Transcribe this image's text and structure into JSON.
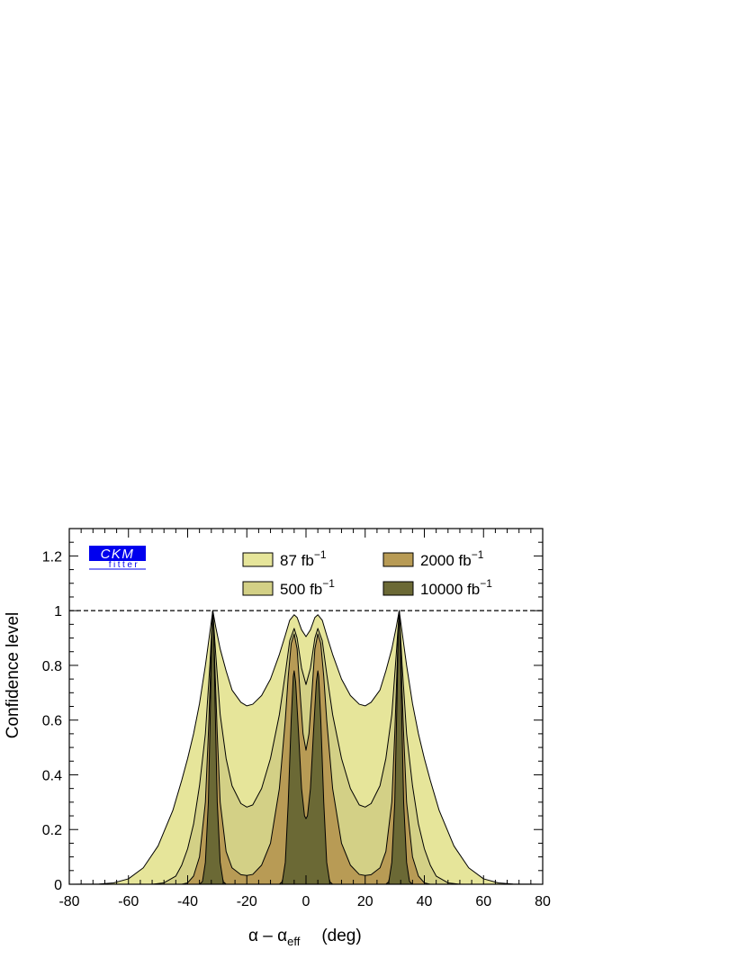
{
  "chart_data": {
    "type": "area",
    "xlabel": "α – α",
    "xlabel_sub": "eff",
    "xlabel_unit": "(deg)",
    "ylabel": "Confidence level",
    "xlim": [
      -80,
      80
    ],
    "ylim": [
      0,
      1.3
    ],
    "xticks": [
      -80,
      -60,
      -40,
      -20,
      0,
      20,
      40,
      60,
      80
    ],
    "yticks": [
      0,
      0.2,
      0.4,
      0.6,
      0.8,
      1,
      1.2
    ],
    "ytick_labels": [
      "0",
      "0.2",
      "0.4",
      "0.6",
      "0.8",
      "1",
      "1.2"
    ],
    "reference_line": {
      "y": 1,
      "style": "dashed"
    },
    "legend_placement": "top",
    "logo": {
      "main": "CKM",
      "sub": "fitter",
      "color": "#0000ee"
    },
    "series": [
      {
        "name": "87 fb",
        "sup": "−1",
        "color": "#e6e59a",
        "points": [
          [
            -80,
            0
          ],
          [
            -70,
            0.001
          ],
          [
            -65,
            0.005
          ],
          [
            -60,
            0.02
          ],
          [
            -55,
            0.06
          ],
          [
            -50,
            0.14
          ],
          [
            -45,
            0.27
          ],
          [
            -42,
            0.38
          ],
          [
            -40,
            0.46
          ],
          [
            -38,
            0.55
          ],
          [
            -36,
            0.66
          ],
          [
            -34,
            0.8
          ],
          [
            -32.5,
            0.92
          ],
          [
            -31.5,
            1.0
          ],
          [
            -30.5,
            0.94
          ],
          [
            -29,
            0.86
          ],
          [
            -27,
            0.78
          ],
          [
            -25,
            0.71
          ],
          [
            -22,
            0.665
          ],
          [
            -20,
            0.652
          ],
          [
            -18,
            0.658
          ],
          [
            -15,
            0.69
          ],
          [
            -12,
            0.75
          ],
          [
            -9,
            0.84
          ],
          [
            -7,
            0.91
          ],
          [
            -5.5,
            0.965
          ],
          [
            -4,
            0.985
          ],
          [
            -3,
            0.975
          ],
          [
            -1.5,
            0.93
          ],
          [
            0,
            0.905
          ],
          [
            1.5,
            0.93
          ],
          [
            3,
            0.975
          ],
          [
            4,
            0.985
          ],
          [
            5.5,
            0.965
          ],
          [
            7,
            0.91
          ],
          [
            9,
            0.84
          ],
          [
            12,
            0.75
          ],
          [
            15,
            0.69
          ],
          [
            18,
            0.658
          ],
          [
            20,
            0.652
          ],
          [
            22,
            0.665
          ],
          [
            25,
            0.71
          ],
          [
            27,
            0.78
          ],
          [
            29,
            0.86
          ],
          [
            30.5,
            0.94
          ],
          [
            31.5,
            1.0
          ],
          [
            32.5,
            0.92
          ],
          [
            34,
            0.8
          ],
          [
            36,
            0.66
          ],
          [
            38,
            0.55
          ],
          [
            40,
            0.46
          ],
          [
            42,
            0.38
          ],
          [
            45,
            0.27
          ],
          [
            50,
            0.14
          ],
          [
            55,
            0.06
          ],
          [
            60,
            0.02
          ],
          [
            65,
            0.005
          ],
          [
            70,
            0.001
          ],
          [
            80,
            0
          ]
        ]
      },
      {
        "name": "500 fb",
        "sup": "−1",
        "color": "#d3d086",
        "points": [
          [
            -80,
            0
          ],
          [
            -52,
            0
          ],
          [
            -48,
            0.005
          ],
          [
            -44,
            0.03
          ],
          [
            -42,
            0.07
          ],
          [
            -40,
            0.13
          ],
          [
            -38,
            0.22
          ],
          [
            -36,
            0.36
          ],
          [
            -34,
            0.55
          ],
          [
            -32.5,
            0.8
          ],
          [
            -31.5,
            1.0
          ],
          [
            -30.5,
            0.84
          ],
          [
            -29,
            0.62
          ],
          [
            -27,
            0.46
          ],
          [
            -25,
            0.36
          ],
          [
            -22,
            0.295
          ],
          [
            -20,
            0.282
          ],
          [
            -18,
            0.29
          ],
          [
            -15,
            0.35
          ],
          [
            -12,
            0.46
          ],
          [
            -9,
            0.62
          ],
          [
            -7,
            0.77
          ],
          [
            -5.5,
            0.89
          ],
          [
            -4,
            0.935
          ],
          [
            -3,
            0.9
          ],
          [
            -1.5,
            0.79
          ],
          [
            0,
            0.73
          ],
          [
            1.5,
            0.79
          ],
          [
            3,
            0.9
          ],
          [
            4,
            0.935
          ],
          [
            5.5,
            0.89
          ],
          [
            7,
            0.77
          ],
          [
            9,
            0.62
          ],
          [
            12,
            0.46
          ],
          [
            15,
            0.35
          ],
          [
            18,
            0.29
          ],
          [
            20,
            0.282
          ],
          [
            22,
            0.295
          ],
          [
            25,
            0.36
          ],
          [
            27,
            0.46
          ],
          [
            29,
            0.62
          ],
          [
            30.5,
            0.84
          ],
          [
            31.5,
            1.0
          ],
          [
            32.5,
            0.8
          ],
          [
            34,
            0.55
          ],
          [
            36,
            0.36
          ],
          [
            38,
            0.22
          ],
          [
            40,
            0.13
          ],
          [
            42,
            0.07
          ],
          [
            44,
            0.03
          ],
          [
            48,
            0.005
          ],
          [
            52,
            0
          ],
          [
            80,
            0
          ]
        ]
      },
      {
        "name": "2000 fb",
        "sup": "−1",
        "color": "#b89b55",
        "points": [
          [
            -80,
            0
          ],
          [
            -42,
            0
          ],
          [
            -40,
            0.005
          ],
          [
            -38,
            0.03
          ],
          [
            -36,
            0.1
          ],
          [
            -34,
            0.3
          ],
          [
            -33,
            0.55
          ],
          [
            -32,
            0.85
          ],
          [
            -31.5,
            1.0
          ],
          [
            -31,
            0.86
          ],
          [
            -30,
            0.55
          ],
          [
            -29,
            0.3
          ],
          [
            -27,
            0.12
          ],
          [
            -25,
            0.06
          ],
          [
            -22,
            0.035
          ],
          [
            -20,
            0.032
          ],
          [
            -18,
            0.036
          ],
          [
            -15,
            0.07
          ],
          [
            -12,
            0.15
          ],
          [
            -9,
            0.35
          ],
          [
            -7,
            0.6
          ],
          [
            -6,
            0.76
          ],
          [
            -5,
            0.88
          ],
          [
            -4,
            0.915
          ],
          [
            -3,
            0.86
          ],
          [
            -2,
            0.7
          ],
          [
            -1,
            0.55
          ],
          [
            0,
            0.49
          ],
          [
            1,
            0.55
          ],
          [
            2,
            0.7
          ],
          [
            3,
            0.86
          ],
          [
            4,
            0.915
          ],
          [
            5,
            0.88
          ],
          [
            6,
            0.76
          ],
          [
            7,
            0.6
          ],
          [
            9,
            0.35
          ],
          [
            12,
            0.15
          ],
          [
            15,
            0.07
          ],
          [
            18,
            0.036
          ],
          [
            20,
            0.032
          ],
          [
            22,
            0.035
          ],
          [
            25,
            0.06
          ],
          [
            27,
            0.12
          ],
          [
            29,
            0.3
          ],
          [
            30,
            0.55
          ],
          [
            31,
            0.86
          ],
          [
            31.5,
            1.0
          ],
          [
            32,
            0.85
          ],
          [
            33,
            0.55
          ],
          [
            34,
            0.3
          ],
          [
            36,
            0.1
          ],
          [
            38,
            0.03
          ],
          [
            40,
            0.005
          ],
          [
            42,
            0
          ],
          [
            80,
            0
          ]
        ]
      },
      {
        "name": "10000 fb",
        "sup": "−1",
        "color": "#6b6935",
        "points": [
          [
            -80,
            0
          ],
          [
            -36,
            0
          ],
          [
            -35,
            0.01
          ],
          [
            -34,
            0.08
          ],
          [
            -33,
            0.3
          ],
          [
            -32.3,
            0.65
          ],
          [
            -31.8,
            0.92
          ],
          [
            -31.5,
            1.0
          ],
          [
            -31.2,
            0.92
          ],
          [
            -30.7,
            0.65
          ],
          [
            -30,
            0.3
          ],
          [
            -29,
            0.08
          ],
          [
            -28,
            0.01
          ],
          [
            -27,
            0
          ],
          [
            -9,
            0
          ],
          [
            -8,
            0.01
          ],
          [
            -7,
            0.08
          ],
          [
            -6,
            0.3
          ],
          [
            -5,
            0.6
          ],
          [
            -4.3,
            0.76
          ],
          [
            -4,
            0.78
          ],
          [
            -3.5,
            0.74
          ],
          [
            -2.5,
            0.55
          ],
          [
            -1.5,
            0.35
          ],
          [
            -0.5,
            0.25
          ],
          [
            0,
            0.24
          ],
          [
            0.5,
            0.25
          ],
          [
            1.5,
            0.35
          ],
          [
            2.5,
            0.55
          ],
          [
            3.5,
            0.74
          ],
          [
            4,
            0.78
          ],
          [
            4.3,
            0.76
          ],
          [
            5,
            0.6
          ],
          [
            6,
            0.3
          ],
          [
            7,
            0.08
          ],
          [
            8,
            0.01
          ],
          [
            9,
            0
          ],
          [
            27,
            0
          ],
          [
            28,
            0.01
          ],
          [
            29,
            0.08
          ],
          [
            30,
            0.3
          ],
          [
            30.7,
            0.65
          ],
          [
            31.2,
            0.92
          ],
          [
            31.5,
            1.0
          ],
          [
            31.8,
            0.92
          ],
          [
            32.3,
            0.65
          ],
          [
            33,
            0.3
          ],
          [
            34,
            0.08
          ],
          [
            35,
            0.01
          ],
          [
            36,
            0
          ],
          [
            80,
            0
          ]
        ]
      }
    ]
  }
}
